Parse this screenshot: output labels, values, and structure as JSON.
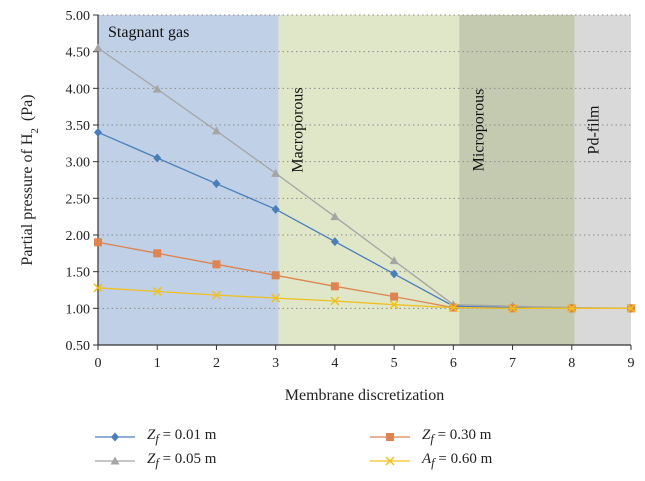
{
  "chart_data": {
    "type": "line",
    "title": "",
    "xlabel": "Membrane discretization",
    "ylabel": "Partial pressure of H",
    "ylabel_subscript": "2",
    "ylabel_unit": "(Pa)",
    "x": [
      0,
      1,
      2,
      3,
      4,
      5,
      6,
      7,
      8,
      9
    ],
    "xlim": [
      0,
      9
    ],
    "ylim": [
      0.5,
      5.0
    ],
    "x_ticks": [
      "0",
      "1",
      "2",
      "3",
      "4",
      "5",
      "6",
      "7",
      "8",
      "9"
    ],
    "y_ticks": [
      "0.50",
      "1.00",
      "1.50",
      "2.00",
      "2.50",
      "3.00",
      "3.50",
      "4.00",
      "4.50",
      "5.00"
    ],
    "grid": "dotted horizontal",
    "legend_position": "bottom",
    "regions": [
      {
        "label": "Stagnant gas",
        "x_start": 0,
        "x_end": 3.05,
        "color": "#c0d0e6",
        "label_orientation": "horizontal"
      },
      {
        "label": "Macroporous",
        "x_start": 3.05,
        "x_end": 6.1,
        "color": "#dfe7c8",
        "label_orientation": "vertical"
      },
      {
        "label": "Microporous",
        "x_start": 6.1,
        "x_end": 8.05,
        "color": "#c4cab0",
        "label_orientation": "vertical"
      },
      {
        "label": "Pd-film",
        "x_start": 8.05,
        "x_end": 9.0,
        "color": "#d9d9d9",
        "label_orientation": "vertical"
      }
    ],
    "series": [
      {
        "var": "Z",
        "sub": "f",
        "eq": "= 0.01 m",
        "marker": "diamond",
        "color": "#4a7ebb",
        "x": [
          0,
          1,
          2,
          3,
          4,
          5,
          6,
          7,
          8,
          9
        ],
        "values": [
          3.4,
          3.05,
          2.7,
          2.35,
          1.91,
          1.47,
          1.03,
          1.01,
          1.0,
          1.0
        ]
      },
      {
        "var": "Z",
        "sub": "f",
        "eq": "= 0.05 m",
        "marker": "triangle",
        "color": "#a5a5a5",
        "x": [
          0,
          1,
          2,
          3,
          4,
          5,
          6,
          7,
          8,
          9
        ],
        "values": [
          4.55,
          3.99,
          3.42,
          2.84,
          2.25,
          1.65,
          1.05,
          1.03,
          1.01,
          1.0
        ]
      },
      {
        "var": "Z",
        "sub": "f",
        "eq": "= 0.30 m",
        "marker": "square",
        "color": "#dd8452",
        "x": [
          0,
          1,
          2,
          3,
          4,
          5,
          6,
          7,
          8,
          9
        ],
        "values": [
          1.9,
          1.75,
          1.6,
          1.45,
          1.3,
          1.16,
          1.01,
          1.0,
          1.0,
          1.0
        ]
      },
      {
        "var": "A",
        "sub": "f",
        "eq": "= 0.60 m",
        "marker": "x",
        "color": "#f0c020",
        "x": [
          0,
          1,
          2,
          3,
          4,
          5,
          6,
          7,
          8,
          9
        ],
        "values": [
          1.28,
          1.23,
          1.18,
          1.14,
          1.1,
          1.05,
          1.01,
          1.0,
          1.0,
          1.0
        ]
      }
    ]
  }
}
